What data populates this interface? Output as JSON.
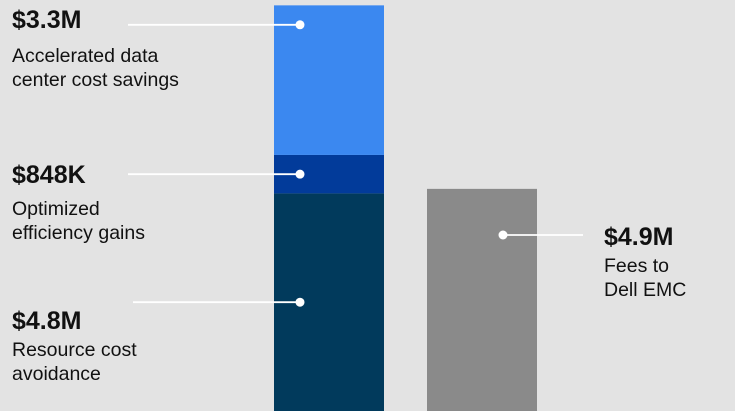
{
  "chart_data": {
    "type": "bar",
    "ylim": [
      0,
      9
    ],
    "stacked_bar": {
      "segments": [
        {
          "value": 4.8,
          "value_label": "$4.8M",
          "description": "Resource cost\navoidance",
          "color": "#013a5c"
        },
        {
          "value": 0.848,
          "value_label": "$848K",
          "description": "Optimized\nefficiency gains",
          "color": "#023b9a"
        },
        {
          "value": 3.3,
          "value_label": "$3.3M",
          "description": "Accelerated data\ncenter cost savings",
          "color": "#3b88f0"
        }
      ]
    },
    "single_bar": {
      "value": 4.9,
      "value_label": "$4.9M",
      "description": "Fees to\nDell EMC",
      "color": "#8a8a8a"
    }
  }
}
